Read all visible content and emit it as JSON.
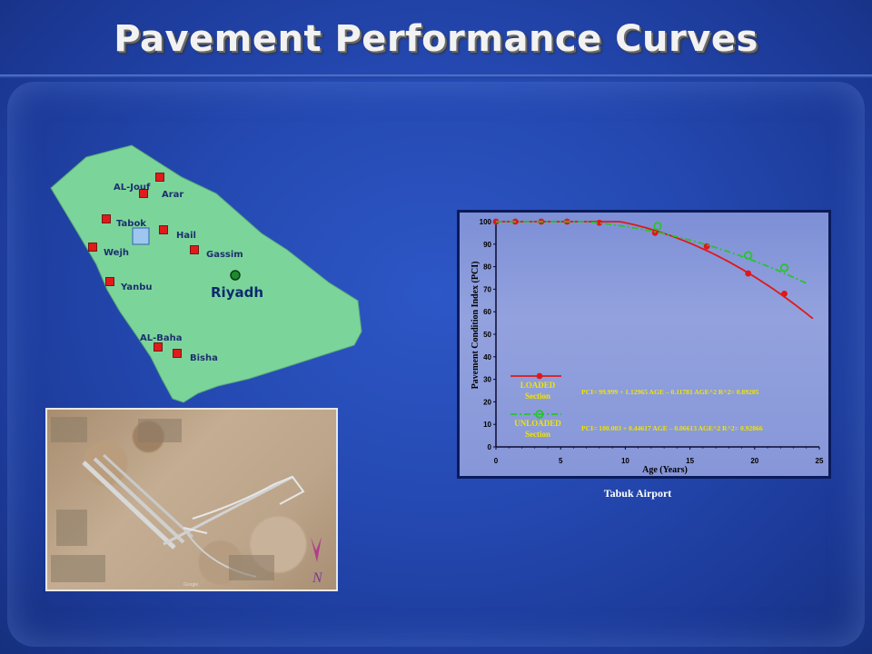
{
  "title": "Pavement Performance Curves",
  "map": {
    "region_fill": "#7bd59a",
    "airport_marker_color": "#e11b1b",
    "capital_marker_color": "#1c8a2e",
    "cities": [
      {
        "name": "AL-Jouf"
      },
      {
        "name": "Arar"
      },
      {
        "name": "Tabok"
      },
      {
        "name": "Hail"
      },
      {
        "name": "Wejh"
      },
      {
        "name": "Gassim"
      },
      {
        "name": "Yanbu"
      },
      {
        "name": "Riyadh"
      },
      {
        "name": "AL-Baha"
      },
      {
        "name": "Bisha"
      }
    ]
  },
  "photo": {
    "logo_letter": "N",
    "credit_line": "Google"
  },
  "caption": "Tabuk Airport",
  "chart_data": {
    "type": "line",
    "title": "",
    "xlabel": "Age (Years)",
    "ylabel": "Pavement Condition Index (PCI)",
    "xlim": [
      0,
      25
    ],
    "ylim": [
      0,
      100
    ],
    "xticks": [
      0,
      5,
      10,
      15,
      20,
      25
    ],
    "yticks": [
      0,
      10,
      20,
      30,
      40,
      50,
      60,
      70,
      80,
      90,
      100
    ],
    "grid": false,
    "series": [
      {
        "name": "LOADED Section",
        "legend_lines": [
          "LOADED",
          "Section"
        ],
        "color": "#e01818",
        "style": "solid",
        "points": [
          [
            0,
            100
          ],
          [
            1.5,
            100
          ],
          [
            3.5,
            100
          ],
          [
            5.5,
            100
          ],
          [
            8,
            99.5
          ],
          [
            12.3,
            95
          ],
          [
            16.3,
            89
          ],
          [
            19.5,
            77
          ],
          [
            22.3,
            68
          ]
        ],
        "equation": "PCI= 99.999 + 1.12965 AGE – 0.11781 AGE^2   R^2= 0.89205"
      },
      {
        "name": "UNLOADED Section",
        "legend_lines": [
          "UNLOADED",
          "Section"
        ],
        "color": "#27c42a",
        "style": "dash-dot",
        "points": [
          [
            12.5,
            98
          ],
          [
            19.5,
            85
          ],
          [
            22.3,
            79.5
          ]
        ],
        "equation": "PCI= 100.003 + 0.44617 AGE – 0.06613 AGE^2   R^2= 0.92866"
      }
    ],
    "label_color": "#f0e400"
  }
}
